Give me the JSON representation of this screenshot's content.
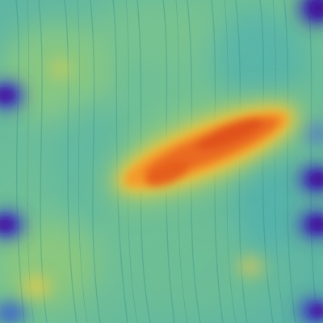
{
  "image": {
    "kind": "heatmap-overlay",
    "subject": "wood-grain-texture",
    "colormap": [
      "#3b2bb0",
      "#2f7fd0",
      "#43b6c6",
      "#6ec39b",
      "#a6cf6e",
      "#e8c23c",
      "#f08a25",
      "#e5561c"
    ],
    "base_color": "#63b79f"
  }
}
